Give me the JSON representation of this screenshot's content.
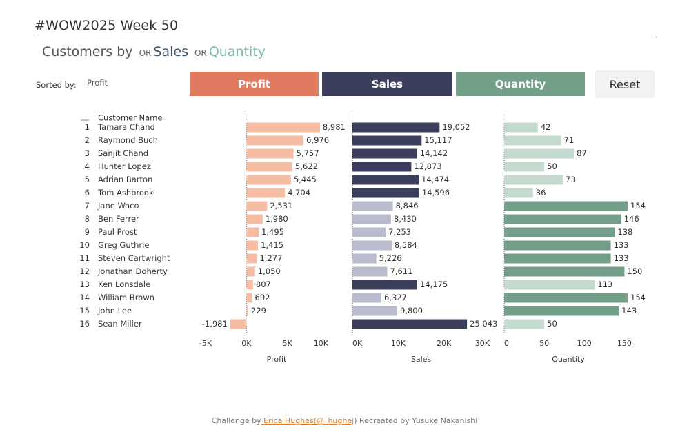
{
  "header": {
    "title": "#WOW2025 Week 50",
    "subtitle_prefix": "Customers by",
    "subtitle_or": "OR",
    "subtitle_sales": "Sales",
    "subtitle_quantity": "Quantity"
  },
  "controls": {
    "sorted_by_label": "Sorted by:",
    "sorted_by_value": "Profit",
    "profit_button": "Profit",
    "sales_button": "Sales",
    "quantity_button": "Quantity",
    "reset_button": "Reset"
  },
  "colors": {
    "profit_button": "#e07b61",
    "sales_button": "#3b3f5c",
    "quantity_button": "#739f88",
    "profit_bar": "#f4bda4",
    "sales_dark": "#3b3f5c",
    "sales_light": "#b8bccd",
    "quantity_dark": "#739f88",
    "quantity_light": "#c5dacf"
  },
  "chart_data": {
    "type": "bar",
    "orientation": "horizontal",
    "row_header_label": "Customer Name",
    "categories": [
      "Tamara Chand",
      "Raymond Buch",
      "Sanjit Chand",
      "Hunter Lopez",
      "Adrian Barton",
      "Tom Ashbrook",
      "Jane Waco",
      "Ben Ferrer",
      "Paul Prost",
      "Greg Guthrie",
      "Steven Cartwright",
      "Jonathan Doherty",
      "Ken Lonsdale",
      "William Brown",
      "John Lee",
      "Sean Miller"
    ],
    "ranks": [
      1,
      2,
      3,
      4,
      5,
      6,
      7,
      8,
      9,
      10,
      11,
      12,
      13,
      14,
      15,
      16
    ],
    "series": [
      {
        "name": "Profit",
        "xlabel": "Profit",
        "values": [
          8981,
          6976,
          5757,
          5622,
          5445,
          4704,
          2531,
          1980,
          1495,
          1415,
          1277,
          1050,
          807,
          692,
          229,
          -1981
        ],
        "labels": [
          "8,981",
          "6,976",
          "5,757",
          "5,622",
          "5,445",
          "4,704",
          "2,531",
          "1,980",
          "1,495",
          "1,415",
          "1,277",
          "1,050",
          "807",
          "692",
          "229",
          "-1,981"
        ],
        "xlim": [
          -5000,
          10000
        ],
        "ticks": [
          -5000,
          0,
          5000,
          10000
        ],
        "tick_labels": [
          "-5K",
          "0K",
          "5K",
          "10K"
        ],
        "highlight": [
          false,
          false,
          false,
          false,
          false,
          false,
          false,
          false,
          false,
          false,
          false,
          false,
          false,
          false,
          false,
          false
        ]
      },
      {
        "name": "Sales",
        "xlabel": "Sales",
        "values": [
          19052,
          15117,
          14142,
          12873,
          14474,
          14596,
          8846,
          8430,
          7253,
          8584,
          5226,
          7611,
          14175,
          6327,
          9800,
          25043
        ],
        "labels": [
          "19,052",
          "15,117",
          "14,142",
          "12,873",
          "14,474",
          "14,596",
          "8,846",
          "8,430",
          "7,253",
          "8,584",
          "5,226",
          "7,611",
          "14,175",
          "6,327",
          "9,800",
          "25,043"
        ],
        "xlim": [
          0,
          30000
        ],
        "ticks": [
          0,
          10000,
          20000,
          30000
        ],
        "tick_labels": [
          "0K",
          "10K",
          "20K",
          "30K"
        ],
        "highlight": [
          true,
          true,
          true,
          true,
          true,
          true,
          false,
          false,
          false,
          false,
          false,
          false,
          true,
          false,
          false,
          true
        ]
      },
      {
        "name": "Quantity",
        "xlabel": "Quantity",
        "values": [
          42,
          71,
          87,
          50,
          73,
          36,
          154,
          146,
          138,
          133,
          133,
          150,
          113,
          154,
          143,
          50
        ],
        "labels": [
          "42",
          "71",
          "87",
          "50",
          "73",
          "36",
          "154",
          "146",
          "138",
          "133",
          "133",
          "150",
          "113",
          "154",
          "143",
          "50"
        ],
        "xlim": [
          0,
          160
        ],
        "ticks": [
          0,
          50,
          100,
          150
        ],
        "tick_labels": [
          "0",
          "50",
          "100",
          "150"
        ],
        "highlight": [
          false,
          false,
          false,
          false,
          false,
          false,
          true,
          true,
          true,
          true,
          true,
          true,
          false,
          true,
          true,
          false
        ]
      }
    ]
  },
  "footer": {
    "prefix": "Challenge by",
    "author_link": " Erica Hughes(@_hughej",
    "suffix": ") Recreated by Yusuke Nakanishi"
  }
}
